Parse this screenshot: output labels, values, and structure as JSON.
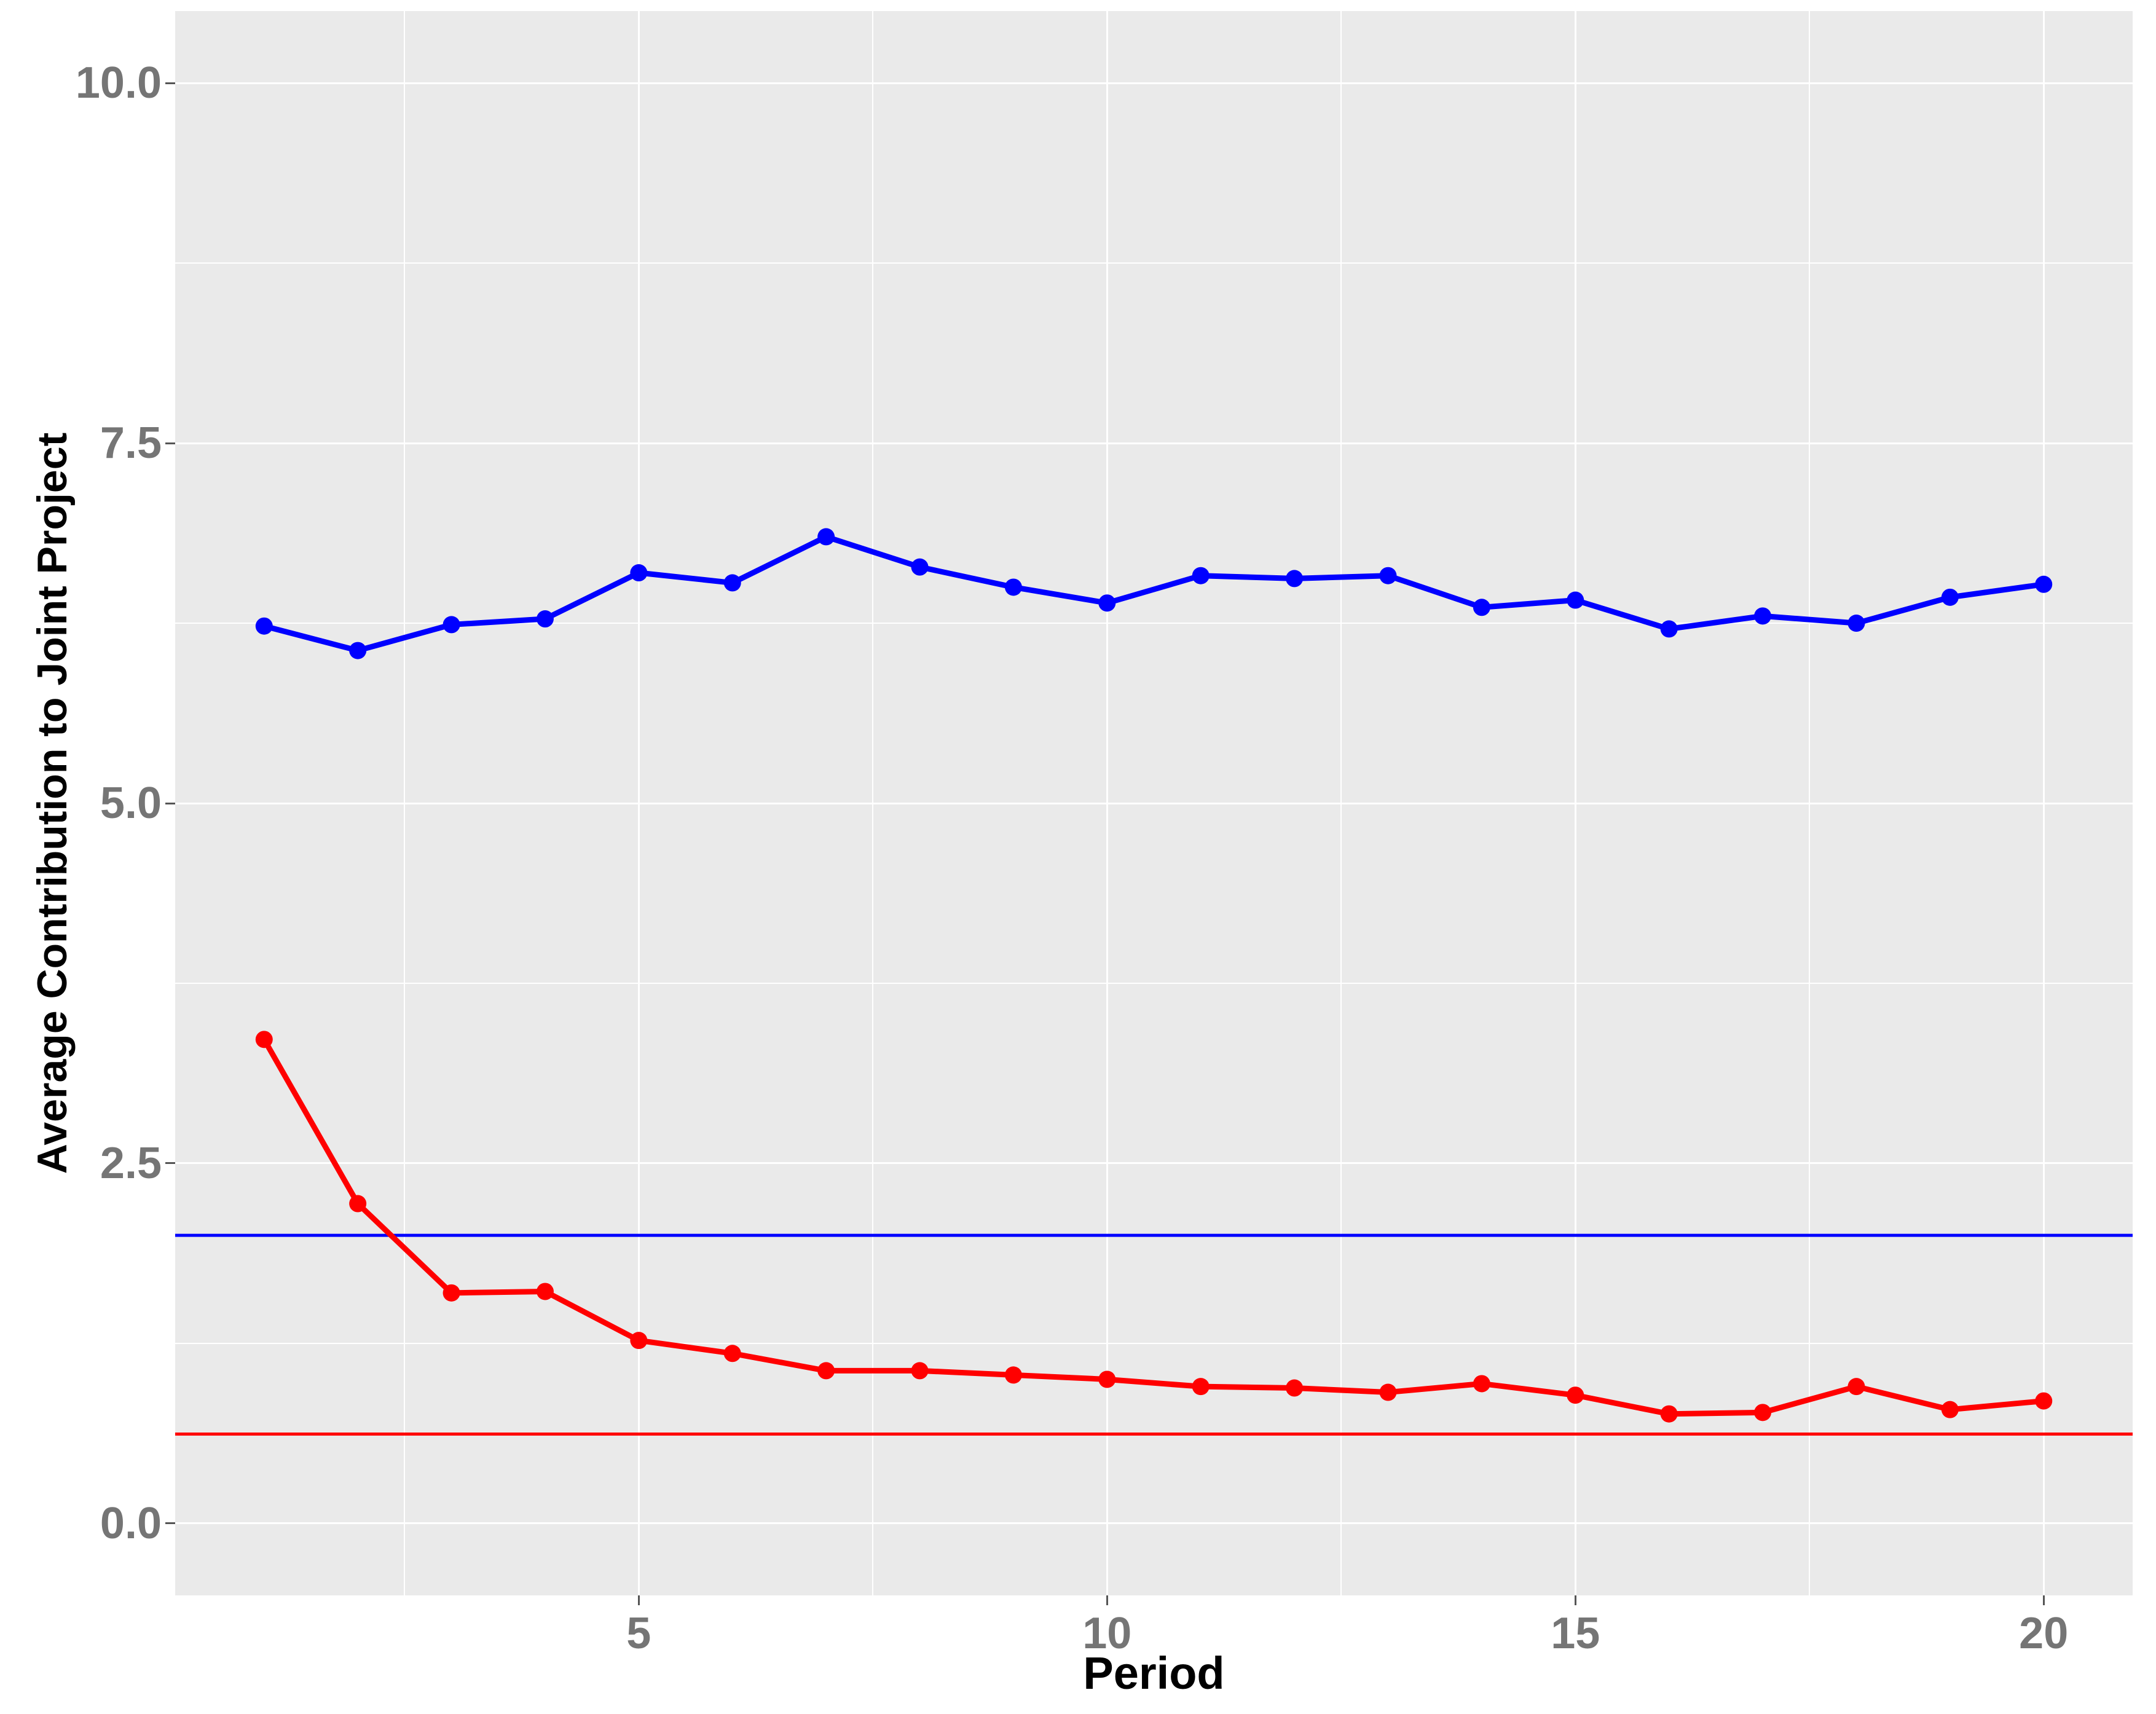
{
  "figure": {
    "background": "#FFFFFF",
    "panel_background": "#EAEAEA",
    "grid_color": "#FFFFFF",
    "tick_color": "#555555",
    "tick_label_color": "#757575",
    "axis_title_color": "#000000"
  },
  "x_axis": {
    "title": "Period",
    "tick_labels": [
      "5",
      "10",
      "15",
      "20"
    ]
  },
  "y_axis": {
    "title": "Average Contribution to Joint Project",
    "tick_labels": [
      "10.0",
      "7.5",
      "5.0",
      "2.5",
      "0.0"
    ]
  },
  "chart_data": {
    "type": "line",
    "title": "",
    "xlabel": "Period",
    "ylabel": "Average Contribution to Joint Project",
    "x": [
      1,
      2,
      3,
      4,
      5,
      6,
      7,
      8,
      9,
      10,
      11,
      12,
      13,
      14,
      15,
      16,
      17,
      18,
      19,
      20
    ],
    "series": [
      {
        "name": "blue-series",
        "color": "#0000FF",
        "values": [
          6.23,
          6.06,
          6.24,
          6.28,
          6.6,
          6.53,
          6.85,
          6.64,
          6.5,
          6.39,
          6.58,
          6.56,
          6.58,
          6.36,
          6.41,
          6.21,
          6.3,
          6.25,
          6.43,
          6.52
        ]
      },
      {
        "name": "red-series",
        "color": "#FF0000",
        "values": [
          3.36,
          2.22,
          1.6,
          1.61,
          1.27,
          1.18,
          1.06,
          1.06,
          1.03,
          1.0,
          0.95,
          0.94,
          0.91,
          0.97,
          0.89,
          0.76,
          0.77,
          0.95,
          0.79,
          0.85
        ]
      }
    ],
    "hlines": [
      {
        "name": "blue-reference-line",
        "y": 2.0,
        "color": "#0000FF"
      },
      {
        "name": "red-reference-line",
        "y": 0.62,
        "color": "#FF0000"
      }
    ],
    "xlim": [
      0.05,
      20.95
    ],
    "ylim": [
      -0.5,
      10.5
    ],
    "x_major_ticks": [
      5,
      10,
      15,
      20
    ],
    "x_minor_ticks": [
      2.5,
      7.5,
      12.5,
      17.5
    ],
    "y_major_ticks": [
      0,
      2.5,
      5,
      7.5,
      10
    ],
    "y_minor_ticks": [
      1.25,
      3.75,
      6.25,
      8.75
    ],
    "grid": "major+minor",
    "legend_position": "none"
  }
}
